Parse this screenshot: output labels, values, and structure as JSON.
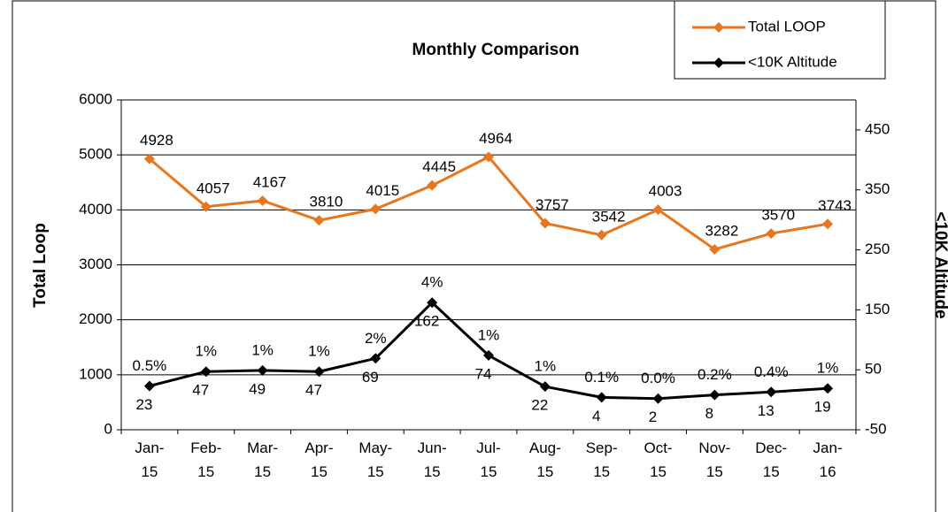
{
  "chart_data": {
    "type": "line",
    "title": "Monthly Comparison",
    "categories": [
      "Jan-15",
      "Feb-15",
      "Mar-15",
      "Apr-15",
      "May-15",
      "Jun-15",
      "Jul-15",
      "Aug-15",
      "Sep-15",
      "Oct-15",
      "Nov-15",
      "Dec-15",
      "Jan-16"
    ],
    "ylabel": "Total Loop",
    "y2label": "<10K Altitude",
    "ylim": [
      0,
      6000
    ],
    "yticks": [
      0,
      1000,
      2000,
      3000,
      4000,
      5000,
      6000
    ],
    "y2lim": [
      -50,
      500
    ],
    "y2ticks": [
      -50,
      50,
      150,
      250,
      350,
      450
    ],
    "grid": true,
    "legend": "top-right",
    "series": [
      {
        "name": "Total LOOP",
        "color": "#e8761e",
        "values": [
          4928,
          4057,
          4167,
          3810,
          4015,
          4445,
          4964,
          3757,
          3542,
          4003,
          3282,
          3570,
          3743
        ]
      },
      {
        "name": "<10K Altitude",
        "color": "#000000",
        "axis": "y2",
        "values": [
          23,
          47,
          49,
          47,
          69,
          162,
          74,
          22,
          4,
          2,
          8,
          13,
          19
        ],
        "percentages": [
          "0.5%",
          "1%",
          "1%",
          "1%",
          "2%",
          "4%",
          "1%",
          "1%",
          "0.1%",
          "0.0%",
          "0.2%",
          "0.4%",
          "1%"
        ]
      }
    ]
  }
}
